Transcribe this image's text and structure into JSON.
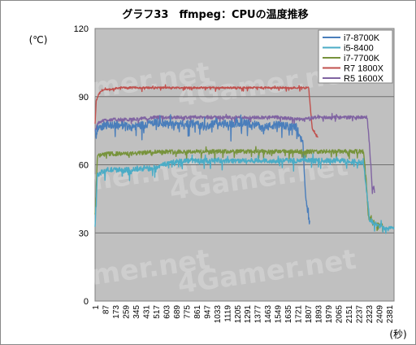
{
  "chart_data": {
    "type": "line",
    "title": "グラフ33　ffmpeg：CPUの温度推移",
    "ylabel": "(℃)",
    "xlabel": "(秒)",
    "ylim": [
      0,
      120
    ],
    "yticks": [
      0,
      30,
      60,
      90,
      120
    ],
    "xlim": [
      1,
      2450
    ],
    "xticks": [
      "1",
      "87",
      "173",
      "259",
      "345",
      "431",
      "517",
      "603",
      "689",
      "775",
      "861",
      "947",
      "1033",
      "1119",
      "1205",
      "1291",
      "1377",
      "1463",
      "1549",
      "1635",
      "1721",
      "1807",
      "1893",
      "1979",
      "2065",
      "2151",
      "2237",
      "2323",
      "2409",
      "2381"
    ],
    "grid": "horizontal",
    "legend_position": "top-right",
    "watermark": "4Gamer.net",
    "series": [
      {
        "name": "i7-8700K",
        "color": "#4a7ebb",
        "x": [
          1,
          30,
          100,
          200,
          300,
          400,
          500,
          600,
          700,
          800,
          900,
          1000,
          1100,
          1200,
          1300,
          1400,
          1500,
          1600,
          1650,
          1700,
          1720,
          1740,
          1760
        ],
        "y": [
          74,
          77,
          78,
          78,
          77,
          78,
          79,
          78,
          78,
          79,
          77,
          79,
          78,
          79,
          78,
          77,
          78,
          77,
          77,
          72,
          50,
          40,
          34
        ]
      },
      {
        "name": "i5-8400",
        "color": "#4bacc6",
        "x": [
          1,
          20,
          100,
          300,
          500,
          600,
          700,
          900,
          1100,
          1300,
          1500,
          1700,
          1900,
          2100,
          2200,
          2250,
          2300,
          2350,
          2400,
          2450
        ],
        "y": [
          34,
          56,
          58,
          58,
          59,
          61,
          62,
          62,
          62,
          62,
          62,
          62,
          62,
          62,
          61,
          36,
          34,
          33,
          32,
          32
        ]
      },
      {
        "name": "i7-7700K",
        "color": "#77933c",
        "x": [
          1,
          20,
          100,
          300,
          500,
          700,
          900,
          1100,
          1300,
          1500,
          1700,
          1900,
          2100,
          2200,
          2220,
          2240,
          2280,
          2320,
          2360
        ],
        "y": [
          36,
          64,
          65,
          65,
          66,
          66,
          66,
          66,
          66,
          66,
          66,
          66,
          66,
          66,
          55,
          37,
          35,
          34,
          34
        ]
      },
      {
        "name": "R7 1800X",
        "color": "#c0504d",
        "x": [
          1,
          10,
          30,
          60,
          100,
          200,
          300,
          400,
          500,
          600,
          700,
          800,
          900,
          1000,
          1100,
          1200,
          1300,
          1400,
          1500,
          1600,
          1700,
          1750,
          1780,
          1810,
          1830
        ],
        "y": [
          78,
          88,
          91,
          93,
          93,
          94,
          94,
          94,
          94,
          94,
          94,
          94,
          94,
          94,
          94,
          94,
          94,
          94,
          94,
          94,
          94,
          94,
          76,
          73,
          72
        ]
      },
      {
        "name": "R5 1600X",
        "color": "#8064a2",
        "x": [
          1,
          30,
          100,
          300,
          500,
          700,
          900,
          1100,
          1300,
          1500,
          1700,
          1800,
          1900,
          2000,
          2100,
          2200,
          2230,
          2250,
          2270,
          2290
        ],
        "y": [
          75,
          79,
          80,
          80,
          81,
          81,
          81,
          81,
          81,
          81,
          80,
          81,
          81,
          81,
          81,
          81,
          81,
          68,
          50,
          50
        ]
      }
    ]
  }
}
